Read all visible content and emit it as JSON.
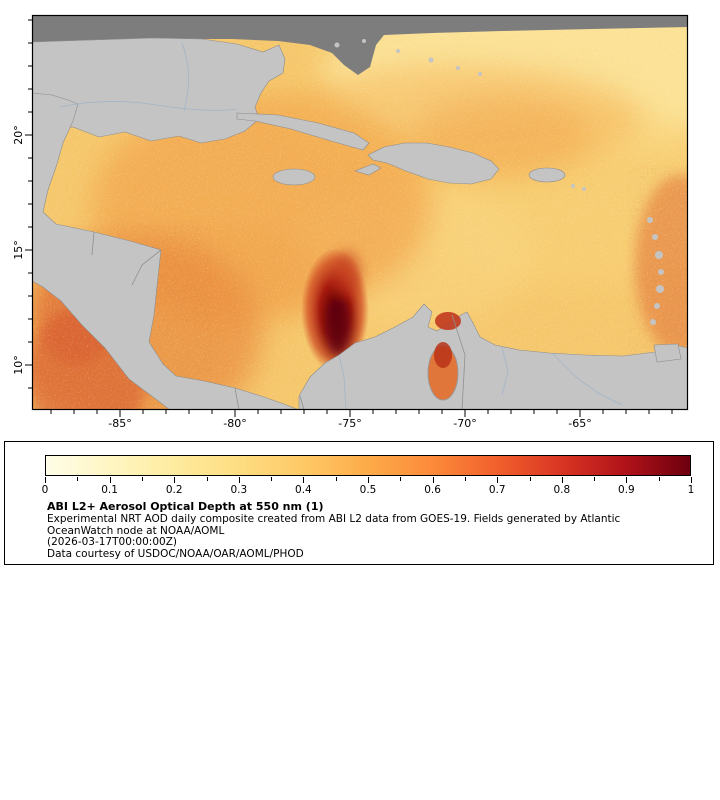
{
  "figure": {
    "map": {
      "lat_ticks": [
        "20°",
        "15°",
        "10°"
      ],
      "lon_ticks": [
        "-85°",
        "-80°",
        "-75°",
        "-70°",
        "-65°"
      ]
    }
  },
  "legend": {
    "colorbar_ticks": [
      "0",
      "0.1",
      "0.2",
      "0.3",
      "0.4",
      "0.5",
      "0.6",
      "0.7",
      "0.8",
      "0.9",
      "1"
    ],
    "colorbar_stops": [
      "#fffde8",
      "#fff6c3",
      "#feeb9e",
      "#fedd82",
      "#fec966",
      "#fdab49",
      "#fc8a3a",
      "#f1602c",
      "#d93523",
      "#b01219",
      "#6e000f"
    ],
    "title": "ABI L2+ Aerosol Optical Depth at 550 nm (1)",
    "lines": [
      "Experimental NRT AOD daily composite created from ABI L2 data from GOES-19. Fields generated by Atlantic",
      "OceanWatch node at NOAA/AOML",
      "(2026-03-17T00:00:00Z)",
      "Data courtesy of USDOC/NOAA/OAR/AOML/PHOD"
    ]
  },
  "colors": {
    "land": "#c4c4c4",
    "land_border": "#8d8d8d",
    "no_data": "#7d7d7d",
    "river": "#9fb3c8",
    "frame": "#000000",
    "background": "#ffffff"
  },
  "chart_data": {
    "type": "heatmap",
    "title": "ABI L2+ Aerosol Optical Depth at 550 nm (1)",
    "variable": "Aerosol Optical Depth at 550 nm",
    "value_range": [
      0,
      1
    ],
    "colorbar_tick_values": [
      0,
      0.1,
      0.2,
      0.3,
      0.4,
      0.5,
      0.6,
      0.7,
      0.8,
      0.9,
      1
    ],
    "x_tick_labels": [
      "-85°",
      "-80°",
      "-75°",
      "-70°",
      "-65°"
    ],
    "y_tick_labels": [
      "20°",
      "15°",
      "10°"
    ],
    "legend_position": "bottom"
  }
}
